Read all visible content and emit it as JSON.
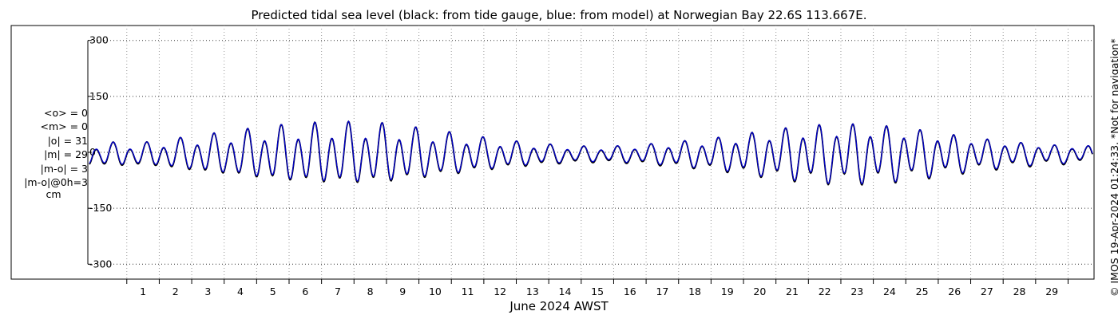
{
  "chart_data": {
    "type": "line",
    "title": "Predicted tidal sea level (black: from tide gauge, blue: from model) at Norwegian Bay 22.6S 113.667E.",
    "xlabel": "June 2024 AWST",
    "ylabel": "",
    "x_ticks": [
      "1",
      "2",
      "3",
      "4",
      "5",
      "6",
      "7",
      "8",
      "9",
      "10",
      "11",
      "12",
      "13",
      "14",
      "15",
      "16",
      "17",
      "18",
      "19",
      "20",
      "21",
      "22",
      "23",
      "24",
      "25",
      "26",
      "27",
      "28",
      "29"
    ],
    "xlim_days": [
      -0.7,
      30.3
    ],
    "y_ticks": [
      300,
      150,
      0,
      -150,
      -300
    ],
    "ylim": [
      -340,
      340
    ],
    "grid": true,
    "legend": "none",
    "series": [
      {
        "name": "black: from tide gauge",
        "color": "#000000",
        "daily_amplitude_cm": [
          22,
          28,
          38,
          46,
          55,
          62,
          66,
          67,
          64,
          55,
          46,
          36,
          28,
          22,
          18,
          18,
          22,
          28,
          34,
          44,
          54,
          62,
          66,
          64,
          58,
          48,
          38,
          30,
          24,
          20
        ]
      },
      {
        "name": "blue: from model",
        "color": "#0000cc",
        "daily_amplitude_cm": [
          21,
          27,
          37,
          45,
          54,
          61,
          65,
          66,
          63,
          54,
          45,
          35,
          27,
          21,
          17,
          17,
          21,
          27,
          33,
          43,
          53,
          61,
          65,
          63,
          57,
          47,
          37,
          29,
          23,
          19
        ]
      }
    ]
  },
  "stats": {
    "lines": [
      "<o> = 0",
      "<m> = 0",
      "|o| = 31",
      "|m| = 29",
      "|m-o| = 3",
      "|m-o|@0h=3"
    ],
    "unit": "cm"
  },
  "credit": "© IMOS 19-Apr-2024 01:24:33. *Not for navigation*"
}
